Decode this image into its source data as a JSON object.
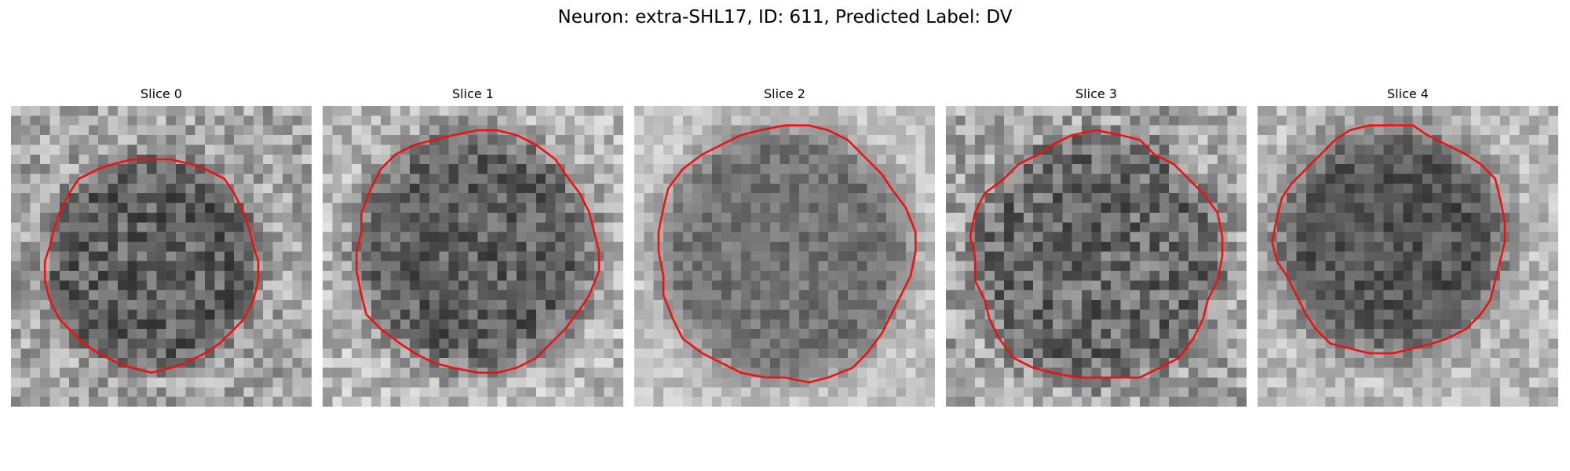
{
  "figure": {
    "title": "Neuron: extra-SHL17, ID: 611, Predicted Label: DV"
  },
  "colors": {
    "contour": "#ee1111",
    "background": "#ffffff"
  },
  "image_style": "noisy grayscale microscopy crops with a red neuron-boundary contour",
  "panels": [
    {
      "title": "Slice 0"
    },
    {
      "title": "Slice 1"
    },
    {
      "title": "Slice 2"
    },
    {
      "title": "Slice 3"
    },
    {
      "title": "Slice 4"
    }
  ]
}
